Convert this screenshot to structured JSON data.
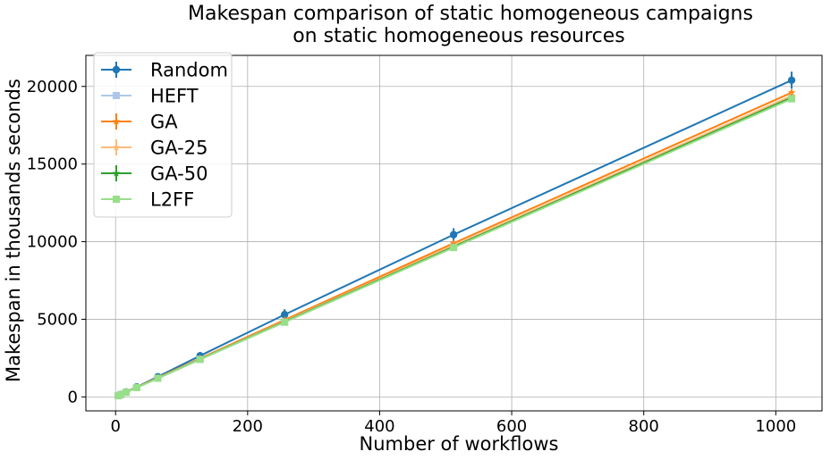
{
  "chart_data": {
    "type": "line",
    "title_lines": [
      "Makespan comparison of static homogeneous campaigns",
      "on static homogeneous resources"
    ],
    "xlabel": "Number of workflows",
    "ylabel": "Makespan in thousands seconds",
    "xlim": [
      -45,
      1070
    ],
    "ylim": [
      -900,
      22000
    ],
    "xticks": [
      0,
      200,
      400,
      600,
      800,
      1000
    ],
    "yticks": [
      0,
      5000,
      10000,
      15000,
      20000
    ],
    "grid": true,
    "legend_position": "top-left",
    "x": [
      4,
      8,
      16,
      32,
      64,
      128,
      256,
      512,
      1024
    ],
    "series": [
      {
        "name": "Random",
        "color": "#1f77b4",
        "marker": "circle",
        "values": [
          80,
          160,
          320,
          640,
          1300,
          2650,
          5300,
          10450,
          20400
        ],
        "errors": [
          40,
          60,
          80,
          120,
          150,
          230,
          350,
          420,
          550
        ]
      },
      {
        "name": "HEFT",
        "color": "#aec7e8",
        "marker": "square",
        "values": [
          75,
          150,
          300,
          600,
          1200,
          2420,
          4820,
          9640,
          19250
        ],
        "errors": [
          0,
          0,
          0,
          0,
          0,
          0,
          0,
          0,
          0
        ]
      },
      {
        "name": "GA",
        "color": "#ff7f0e",
        "marker": "star",
        "values": [
          77,
          155,
          310,
          620,
          1240,
          2480,
          4960,
          9900,
          19600
        ],
        "errors": [
          20,
          30,
          40,
          60,
          70,
          100,
          130,
          150,
          200
        ]
      },
      {
        "name": "GA-25",
        "color": "#ffbb78",
        "marker": "star",
        "values": [
          76,
          152,
          304,
          608,
          1215,
          2440,
          4880,
          9750,
          19400
        ],
        "errors": [
          15,
          25,
          35,
          50,
          60,
          80,
          100,
          120,
          150
        ]
      },
      {
        "name": "GA-50",
        "color": "#2ca02c",
        "marker": "star",
        "values": [
          75,
          150,
          300,
          603,
          1205,
          2425,
          4840,
          9670,
          19280
        ],
        "errors": [
          10,
          15,
          20,
          30,
          40,
          50,
          70,
          80,
          100
        ]
      },
      {
        "name": "L2FF",
        "color": "#98df8a",
        "marker": "square",
        "values": [
          75,
          150,
          300,
          600,
          1200,
          2415,
          4810,
          9620,
          19200
        ],
        "errors": [
          0,
          0,
          0,
          0,
          0,
          0,
          0,
          0,
          0
        ]
      }
    ]
  }
}
